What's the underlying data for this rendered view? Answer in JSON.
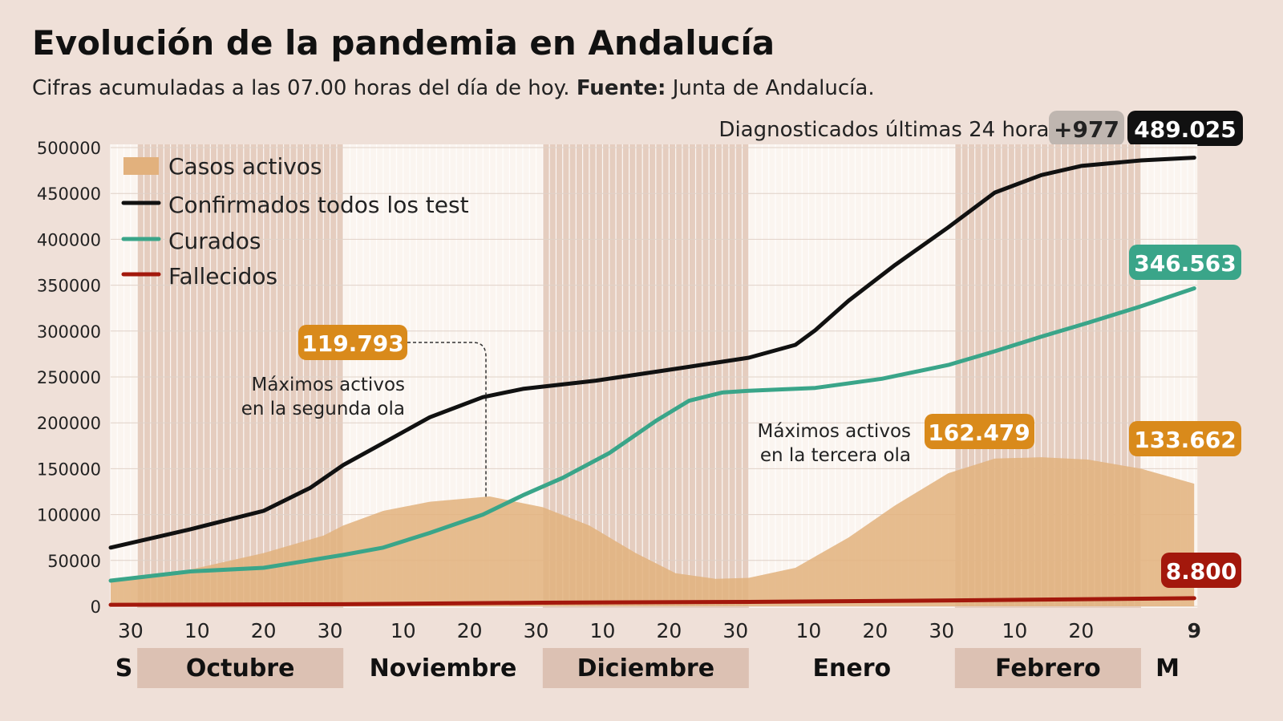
{
  "title": "Evolución de la pandemia en Andalucía",
  "subtitle_pre": "Cifras acumuladas a las 07.00 horas del día de hoy. ",
  "subtitle_bold": "Fuente:",
  "subtitle_post": " Junta de Andalucía.",
  "header_badge": {
    "label": "Diagnosticados últimas 24 horas",
    "delta": "+977",
    "total": "489.025"
  },
  "colors": {
    "background": "#efe0d8",
    "month_shade": "#e5cdbf",
    "month_label_shade": "#dcc1b3",
    "activos": "#e2b17d",
    "confirmados": "#111111",
    "curados": "#3aa589",
    "fallecidos": "#a3180c",
    "orange_label": "#d98a1b",
    "grey_badge": "#bfb6b0"
  },
  "chart_data": {
    "type": "line",
    "title": "Evolución de la pandemia en Andalucía",
    "ylim": [
      0,
      500000
    ],
    "yticks": [
      "0",
      "50000",
      "100000",
      "150000",
      "200000",
      "250000",
      "300000",
      "350000",
      "400000",
      "450000",
      "500000"
    ],
    "xlim": [
      "2020-09-27",
      "2021-03-09"
    ],
    "xticks": [
      {
        "date": "2020-09-30",
        "label": "30"
      },
      {
        "date": "2020-10-10",
        "label": "10"
      },
      {
        "date": "2020-10-20",
        "label": "20"
      },
      {
        "date": "2020-10-30",
        "label": "30"
      },
      {
        "date": "2020-11-10",
        "label": "10"
      },
      {
        "date": "2020-11-20",
        "label": "20"
      },
      {
        "date": "2020-11-30",
        "label": "30"
      },
      {
        "date": "2020-12-10",
        "label": "10"
      },
      {
        "date": "2020-12-20",
        "label": "20"
      },
      {
        "date": "2020-12-30",
        "label": "30"
      },
      {
        "date": "2021-01-10",
        "label": "10"
      },
      {
        "date": "2021-01-20",
        "label": "20"
      },
      {
        "date": "2021-01-30",
        "label": "30"
      },
      {
        "date": "2021-02-10",
        "label": "10"
      },
      {
        "date": "2021-02-20",
        "label": "20"
      },
      {
        "date": "2021-03-09",
        "label": "9",
        "bold": true
      }
    ],
    "months": [
      {
        "label": "S",
        "start": "2020-09-27",
        "end": "2020-10-01",
        "shaded": false
      },
      {
        "label": "Octubre",
        "start": "2020-10-01",
        "end": "2020-11-01",
        "shaded": true
      },
      {
        "label": "Noviembre",
        "start": "2020-11-01",
        "end": "2020-12-01",
        "shaded": false
      },
      {
        "label": "Diciembre",
        "start": "2020-12-01",
        "end": "2021-01-01",
        "shaded": true
      },
      {
        "label": "Enero",
        "start": "2021-01-01",
        "end": "2021-02-01",
        "shaded": false
      },
      {
        "label": "Febrero",
        "start": "2021-02-01",
        "end": "2021-03-01",
        "shaded": true
      },
      {
        "label": "M",
        "start": "2021-03-01",
        "end": "2021-03-09",
        "shaded": false
      }
    ],
    "grid": true,
    "legend_position": "top-left",
    "series": [
      {
        "name": "Casos activos",
        "kind": "area",
        "color": "#e2b17d",
        "points": [
          [
            "2020-09-27",
            30000
          ],
          [
            "2020-10-09",
            40000
          ],
          [
            "2020-10-20",
            58000
          ],
          [
            "2020-10-29",
            77000
          ],
          [
            "2020-11-01",
            88000
          ],
          [
            "2020-11-07",
            104000
          ],
          [
            "2020-11-14",
            114000
          ],
          [
            "2020-11-23",
            119793
          ],
          [
            "2020-12-01",
            108000
          ],
          [
            "2020-12-08",
            88000
          ],
          [
            "2020-12-15",
            58000
          ],
          [
            "2020-12-21",
            36000
          ],
          [
            "2020-12-27",
            30000
          ],
          [
            "2021-01-01",
            31000
          ],
          [
            "2021-01-08",
            42000
          ],
          [
            "2021-01-16",
            75000
          ],
          [
            "2021-01-23",
            110000
          ],
          [
            "2021-01-31",
            145000
          ],
          [
            "2021-02-07",
            161000
          ],
          [
            "2021-02-14",
            162479
          ],
          [
            "2021-02-21",
            160000
          ],
          [
            "2021-03-01",
            150000
          ],
          [
            "2021-03-09",
            133662
          ]
        ]
      },
      {
        "name": "Confirmados todos los test",
        "kind": "line",
        "color": "#111111",
        "points": [
          [
            "2020-09-27",
            64000
          ],
          [
            "2020-10-09",
            84000
          ],
          [
            "2020-10-20",
            104000
          ],
          [
            "2020-10-27",
            129000
          ],
          [
            "2020-11-01",
            154000
          ],
          [
            "2020-11-07",
            178000
          ],
          [
            "2020-11-14",
            206000
          ],
          [
            "2020-11-22",
            228000
          ],
          [
            "2020-11-28",
            237000
          ],
          [
            "2020-12-09",
            246000
          ],
          [
            "2020-12-22",
            260000
          ],
          [
            "2021-01-01",
            271000
          ],
          [
            "2021-01-08",
            285000
          ],
          [
            "2021-01-11",
            301000
          ],
          [
            "2021-01-16",
            333000
          ],
          [
            "2021-01-23",
            372000
          ],
          [
            "2021-01-31",
            413000
          ],
          [
            "2021-02-07",
            451000
          ],
          [
            "2021-02-14",
            470000
          ],
          [
            "2021-02-20",
            480000
          ],
          [
            "2021-03-01",
            486000
          ],
          [
            "2021-03-09",
            489025
          ]
        ]
      },
      {
        "name": "Curados",
        "kind": "line",
        "color": "#3aa589",
        "points": [
          [
            "2020-09-27",
            28000
          ],
          [
            "2020-10-09",
            38000
          ],
          [
            "2020-10-20",
            42000
          ],
          [
            "2020-11-01",
            56000
          ],
          [
            "2020-11-07",
            64000
          ],
          [
            "2020-11-14",
            80000
          ],
          [
            "2020-11-22",
            100000
          ],
          [
            "2020-11-28",
            121000
          ],
          [
            "2020-12-04",
            140000
          ],
          [
            "2020-12-11",
            167000
          ],
          [
            "2020-12-18",
            202000
          ],
          [
            "2020-12-23",
            224000
          ],
          [
            "2020-12-28",
            233000
          ],
          [
            "2021-01-01",
            235000
          ],
          [
            "2021-01-11",
            238000
          ],
          [
            "2021-01-21",
            248000
          ],
          [
            "2021-01-31",
            263000
          ],
          [
            "2021-02-07",
            278000
          ],
          [
            "2021-02-14",
            294000
          ],
          [
            "2021-02-21",
            309000
          ],
          [
            "2021-03-01",
            327000
          ],
          [
            "2021-03-09",
            346563
          ]
        ]
      },
      {
        "name": "Fallecidos",
        "kind": "line",
        "color": "#a3180c",
        "points": [
          [
            "2020-09-27",
            1700
          ],
          [
            "2020-11-01",
            2300
          ],
          [
            "2020-12-01",
            3900
          ],
          [
            "2021-01-01",
            4800
          ],
          [
            "2021-02-01",
            6500
          ],
          [
            "2021-03-09",
            8800
          ]
        ]
      }
    ],
    "annotations": [
      {
        "value_label": "119.793",
        "text": [
          "Máximos activos",
          "en la segunda ola"
        ],
        "date": "2020-11-23",
        "value": 119793
      },
      {
        "value_label": "162.479",
        "text": [
          "Máximos activos",
          "en la tercera ola"
        ],
        "date": "2021-02-14",
        "value": 162479
      }
    ],
    "end_labels": {
      "curados": "346.563",
      "activos": "133.662",
      "fallecidos": "8.800"
    }
  }
}
